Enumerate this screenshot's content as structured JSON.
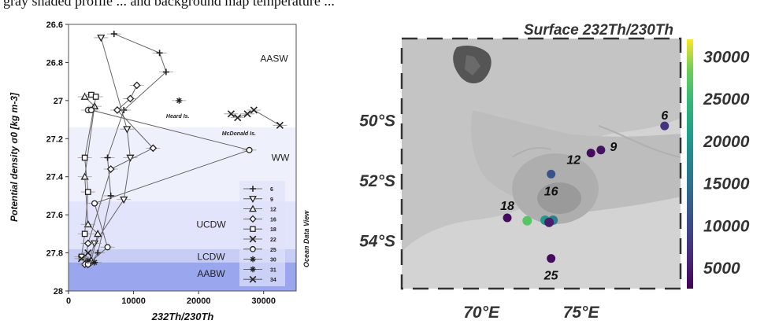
{
  "caption_fragment": "gray shaded profile ... and background map temperature ...",
  "chart_data": [
    {
      "type": "line",
      "xlabel": "232Th/230Th",
      "ylabel": "Potential density σ0 [kg m-3]",
      "xlim": [
        0,
        35000
      ],
      "ylim": [
        28,
        26.6
      ],
      "xticks": [
        0,
        10000,
        20000,
        30000
      ],
      "yticks": [
        26.6,
        26.8,
        27,
        27.2,
        27.4,
        27.6,
        27.8,
        28
      ],
      "y_reversed": true,
      "credit": "Ocean Data View",
      "water_masses": [
        {
          "name": "AASW",
          "from": 26.6,
          "to": 27.14,
          "color": "#ffffff"
        },
        {
          "name": "WW",
          "from": 27.14,
          "to": 27.53,
          "color": "#eef0fc"
        },
        {
          "name": "UCDW",
          "from": 27.53,
          "to": 27.78,
          "color": "#e1e4fa"
        },
        {
          "name": "LCDW",
          "from": 27.78,
          "to": 27.85,
          "color": "#c7cdf5"
        },
        {
          "name": "AABW",
          "from": 27.85,
          "to": 28.0,
          "color": "#9aa6ee"
        }
      ],
      "annotations": [
        {
          "text": "Heard Is.",
          "x": 16800,
          "y": 27.05
        },
        {
          "text": "McDonald Is.",
          "x": 26200,
          "y": 27.14
        }
      ],
      "series": [
        {
          "name": "6",
          "marker": "plus",
          "points": [
            [
              7000,
              26.65
            ],
            [
              14000,
              26.75
            ],
            [
              15000,
              26.85
            ],
            [
              8500,
              27.05
            ],
            [
              6000,
              27.3
            ],
            [
              6500,
              27.5
            ],
            [
              4500,
              27.8
            ],
            [
              3500,
              27.85
            ]
          ]
        },
        {
          "name": "9",
          "marker": "triangle-down",
          "points": [
            [
              5000,
              26.67
            ],
            [
              9000,
              27.15
            ],
            [
              9500,
              27.3
            ],
            [
              8500,
              27.52
            ],
            [
              4000,
              27.75
            ],
            [
              3000,
              27.86
            ]
          ]
        },
        {
          "name": "12",
          "marker": "triangle-up",
          "points": [
            [
              2500,
              26.98
            ],
            [
              4000,
              27.03
            ],
            [
              2500,
              27.4
            ],
            [
              3000,
              27.65
            ],
            [
              4500,
              27.7
            ],
            [
              3500,
              27.84
            ]
          ]
        },
        {
          "name": "16",
          "marker": "diamond",
          "points": [
            [
              10500,
              26.92
            ],
            [
              9500,
              26.99
            ],
            [
              7500,
              27.05
            ],
            [
              13000,
              27.25
            ],
            [
              6500,
              27.36
            ],
            [
              3000,
              27.75
            ],
            [
              2500,
              27.86
            ]
          ]
        },
        {
          "name": "18",
          "marker": "square",
          "points": [
            [
              3500,
              26.97
            ],
            [
              4200,
              26.98
            ],
            [
              2500,
              27.3
            ],
            [
              3000,
              27.48
            ],
            [
              2500,
              27.7
            ],
            [
              2000,
              27.82
            ]
          ]
        },
        {
          "name": "22",
          "marker": "x",
          "points": [
            [
              3000,
              27.8
            ],
            [
              2000,
              27.83
            ]
          ]
        },
        {
          "name": "25",
          "marker": "circle",
          "points": [
            [
              3000,
              27.05
            ],
            [
              3500,
              27.05
            ],
            [
              27800,
              27.26
            ],
            [
              4000,
              27.54
            ],
            [
              6000,
              27.77
            ],
            [
              3000,
              27.86
            ]
          ]
        },
        {
          "name": "30",
          "marker": "asterisk",
          "points": [
            [
              17000,
              27.0
            ]
          ]
        },
        {
          "name": "31",
          "marker": "asterisk",
          "points": [
            [
              3000,
              27.84
            ],
            [
              4000,
              27.85
            ]
          ]
        },
        {
          "name": "34",
          "marker": "x",
          "points": [
            [
              25000,
              27.07
            ],
            [
              26000,
              27.09
            ],
            [
              27500,
              27.07
            ],
            [
              28500,
              27.05
            ],
            [
              32500,
              27.13
            ]
          ]
        }
      ]
    },
    {
      "type": "scatter",
      "title": "Surface 232Th/230Th",
      "xlim": [
        66,
        80
      ],
      "ylim": [
        -55.6,
        -47.3
      ],
      "xticks": [
        {
          "value": 70,
          "label": "70°E"
        },
        {
          "value": 75,
          "label": "75°E"
        }
      ],
      "yticks": [
        {
          "value": -50,
          "label": "50°S"
        },
        {
          "value": -52,
          "label": "52°S"
        },
        {
          "value": -54,
          "label": "54°S"
        }
      ],
      "colorbar": {
        "min": 2500,
        "max": 32000,
        "ticks": [
          5000,
          10000,
          15000,
          20000,
          25000,
          30000
        ],
        "colormap": "viridis"
      },
      "stations": [
        {
          "label": "6",
          "lon": 79.2,
          "lat": -50.2,
          "value": 7500
        },
        {
          "label": "9",
          "lon": 76.0,
          "lat": -51.0,
          "value": 4000
        },
        {
          "label": "12",
          "lon": 75.5,
          "lat": -51.1,
          "value": 3500
        },
        {
          "label": "16",
          "lon": 73.5,
          "lat": -51.8,
          "value": 11000
        },
        {
          "label": "18",
          "lon": 71.3,
          "lat": -53.25,
          "value": 3500
        },
        {
          "label": "25",
          "lon": 73.5,
          "lat": -54.6,
          "value": 3500
        }
      ],
      "unlabelled_points": [
        {
          "lon": 72.3,
          "lat": -53.35,
          "value": 27000
        },
        {
          "lon": 73.2,
          "lat": -53.33,
          "value": 20000
        },
        {
          "lon": 73.6,
          "lat": -53.33,
          "value": 17000
        },
        {
          "lon": 73.4,
          "lat": -53.4,
          "value": 5000
        }
      ]
    }
  ]
}
